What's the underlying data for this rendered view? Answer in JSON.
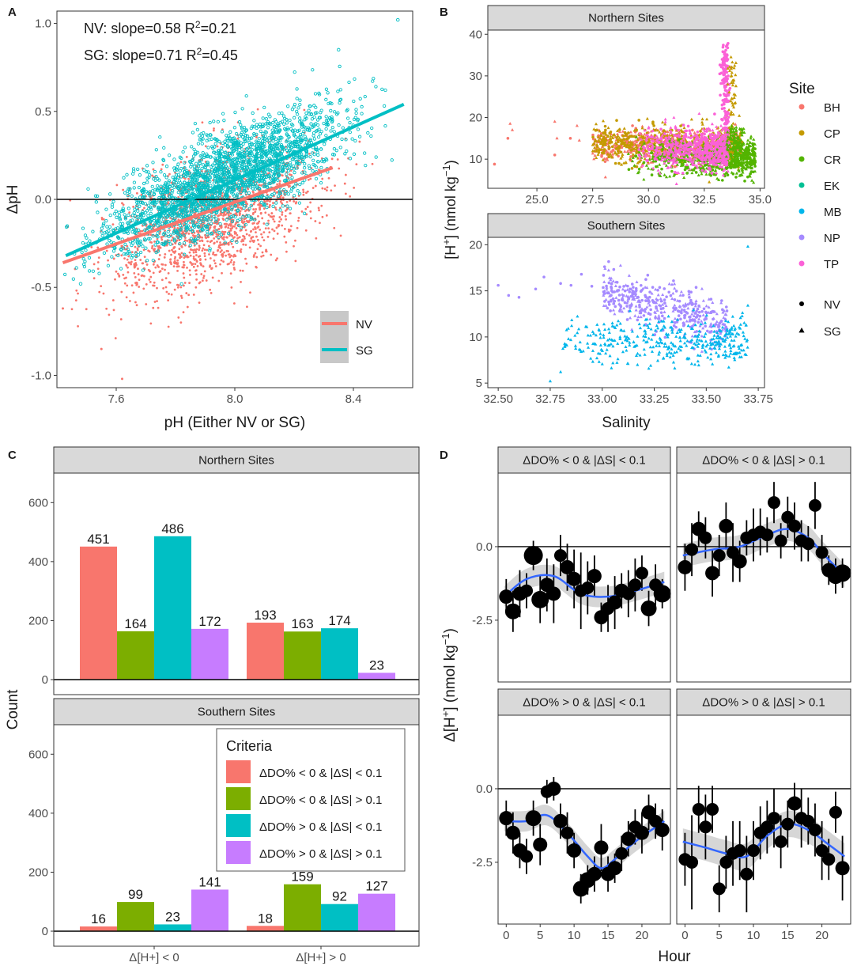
{
  "colors": {
    "nv": "#F8766D",
    "sg": "#00BFC4",
    "site": {
      "BH": "#F8766D",
      "CP": "#C49A00",
      "CR": "#53B400",
      "EK": "#00C094",
      "MB": "#00B6EB",
      "NP": "#A58AFF",
      "TP": "#FB61D7"
    },
    "criteria": [
      "#F8766D",
      "#7CAE00",
      "#00BFC4",
      "#C77CFF"
    ],
    "smooth": "#3366FF",
    "strip": "#d9d9d9"
  },
  "chart_data": [
    {
      "panel": "A",
      "type": "scatter",
      "xlabel": "pH (Either NV or SG)",
      "ylabel": "ΔpH",
      "xlim": [
        7.4,
        8.6
      ],
      "ylim": [
        -1.07,
        1.07
      ],
      "xticks": [
        "7.6",
        "8.0",
        "8.4"
      ],
      "xtick_values": [
        7.6,
        8.0,
        8.4
      ],
      "yticks": [
        "1.0",
        "0.5",
        "0.0",
        "-0.5",
        "-1.0"
      ],
      "ytick_values": [
        1.0,
        0.5,
        0.0,
        -0.5,
        -1.0
      ],
      "annotations": [
        {
          "pre": "NV: slope=0.58 R",
          "sup": "2",
          "post": "=0.21"
        },
        {
          "pre": "SG: slope=0.71 R",
          "sup": "2",
          "post": "=0.45"
        }
      ],
      "series": [
        {
          "name": "NV",
          "slope": 0.58,
          "r2": 0.21,
          "fit_x": [
            7.42,
            8.33
          ],
          "fit_y": [
            -0.36,
            0.18
          ],
          "x_center": 7.92,
          "x_sd": 0.17,
          "noise": 0.17,
          "n": 1700
        },
        {
          "name": "SG",
          "slope": 0.71,
          "r2": 0.45,
          "fit_x": [
            7.43,
            8.57
          ],
          "fit_y": [
            -0.32,
            0.54
          ],
          "x_center": 7.96,
          "x_sd": 0.19,
          "noise": 0.13,
          "n": 2400
        }
      ],
      "outliers": {
        "NV": [
          [
            7.62,
            -1.02
          ],
          [
            7.55,
            -0.85
          ],
          [
            7.42,
            -0.62
          ]
        ],
        "SG": [
          [
            8.55,
            1.02
          ],
          [
            8.35,
            0.85
          ],
          [
            7.48,
            -0.48
          ]
        ]
      },
      "legend": [
        "NV",
        "SG"
      ]
    },
    {
      "panel": "B",
      "type": "scatter",
      "xlabel": "Salinity",
      "ylabel": {
        "pre": "[H",
        "sup": "+",
        "post": "] (nmol kg",
        "sup2": "−1",
        "end": ")"
      },
      "facets": [
        {
          "title": "Northern Sites",
          "xlim": [
            22.8,
            35.2
          ],
          "ylim": [
            3,
            41
          ],
          "xticks": [
            "25.0",
            "27.5",
            "30.0",
            "32.5",
            "35.0"
          ],
          "xtick_values": [
            25.0,
            27.5,
            30.0,
            32.5,
            35.0
          ],
          "yticks": [
            "10",
            "20",
            "30",
            "40"
          ],
          "ytick_values": [
            10,
            20,
            30,
            40
          ],
          "sites": [
            "BH",
            "CP",
            "CR",
            "TP"
          ]
        },
        {
          "title": "Southern Sites",
          "xlim": [
            32.45,
            33.78
          ],
          "ylim": [
            4.5,
            20.8
          ],
          "xticks": [
            "32.50",
            "32.75",
            "33.00",
            "33.25",
            "33.50",
            "33.75"
          ],
          "xtick_values": [
            32.5,
            32.75,
            33.0,
            33.25,
            33.5,
            33.75
          ],
          "yticks": [
            "5",
            "10",
            "15",
            "20"
          ],
          "ytick_values": [
            5,
            10,
            15,
            20
          ],
          "sites": [
            "NP",
            "MB"
          ]
        }
      ],
      "legend": {
        "title": "Site",
        "sites": [
          "BH",
          "CP",
          "CR",
          "EK",
          "MB",
          "NP",
          "TP"
        ],
        "shapes": [
          "NV",
          "SG"
        ]
      }
    },
    {
      "panel": "C",
      "type": "bar",
      "ylabel": "Count",
      "ylim": [
        0,
        700
      ],
      "yticks": [
        "0",
        "200",
        "400",
        "600"
      ],
      "ytick_values": [
        0,
        200,
        400,
        600
      ],
      "categories": [
        "Δ[H+] < 0",
        "Δ[H+] > 0"
      ],
      "criteria": [
        "ΔDO% < 0 & |ΔS| < 0.1",
        "ΔDO% < 0 & |ΔS| > 0.1",
        "ΔDO% > 0 & |ΔS| < 0.1",
        "ΔDO% > 0 & |ΔS| > 0.1"
      ],
      "legend_title": "Criteria",
      "facets": [
        {
          "title": "Northern Sites",
          "values": [
            [
              451,
              164,
              486,
              172
            ],
            [
              193,
              163,
              174,
              23
            ]
          ]
        },
        {
          "title": "Southern Sites",
          "values": [
            [
              16,
              99,
              23,
              141
            ],
            [
              18,
              159,
              92,
              127
            ]
          ]
        }
      ],
      "value_labels": {
        "northern": [
          "451",
          "164",
          "486",
          "172",
          "193",
          "163",
          "174",
          "23"
        ],
        "southern": [
          "16",
          "99",
          "23",
          "141",
          "18",
          "159",
          "92",
          "127"
        ]
      }
    },
    {
      "panel": "D",
      "type": "scatter",
      "xlabel": "Hour",
      "ylabel": {
        "pre": "Δ[H",
        "sup": "+",
        "post": "] (nmol kg",
        "sup2": "−1",
        "end": ")"
      },
      "xlim": [
        -1.2,
        24.2
      ],
      "ylim": [
        -4.6,
        2.5
      ],
      "xticks": [
        "0",
        "5",
        "10",
        "15",
        "20"
      ],
      "xtick_values": [
        0,
        5,
        10,
        15,
        20
      ],
      "yticks": [
        "0.0",
        "-2.5"
      ],
      "ytick_values": [
        0,
        -2.5
      ],
      "facets": [
        {
          "title": "ΔDO% < 0 & |ΔS| < 0.1",
          "points": [
            [
              0,
              -1.7
            ],
            [
              1,
              -2.2
            ],
            [
              2,
              -1.6
            ],
            [
              3,
              -1.5
            ],
            [
              4,
              -0.3
            ],
            [
              5,
              -1.8
            ],
            [
              6,
              -1.3
            ],
            [
              7,
              -1.6
            ],
            [
              8,
              -0.3
            ],
            [
              9,
              -0.7
            ],
            [
              10,
              -1.1
            ],
            [
              11,
              -1.5
            ],
            [
              12,
              -1.4
            ],
            [
              13,
              -1.0
            ],
            [
              14,
              -2.4
            ],
            [
              15,
              -2.1
            ],
            [
              16,
              -1.9
            ],
            [
              17,
              -1.5
            ],
            [
              18,
              -1.6
            ],
            [
              19,
              -1.3
            ],
            [
              20,
              -0.9
            ],
            [
              21,
              -2.1
            ],
            [
              22,
              -1.3
            ],
            [
              23,
              -1.6
            ]
          ],
          "err": [
            0.6,
            0.7,
            0.8,
            0.6,
            0.5,
            0.8,
            0.9,
            1.0,
            0.7,
            0.8,
            1.0,
            1.3,
            0.9,
            0.7,
            0.5,
            0.8,
            0.9,
            0.6,
            0.8,
            0.9,
            0.6,
            0.6,
            0.7,
            0.5
          ],
          "size": [
            9,
            10,
            9,
            8,
            12,
            11,
            9,
            9,
            8,
            9,
            9,
            8,
            8,
            9,
            9,
            8,
            9,
            9,
            8,
            8,
            8,
            10,
            8,
            11
          ],
          "smooth": [
            [
              -0.3,
              -1.7
            ],
            [
              3,
              -1.1
            ],
            [
              7,
              -1.0
            ],
            [
              11,
              -1.6
            ],
            [
              15,
              -1.7
            ],
            [
              19,
              -1.5
            ],
            [
              23.3,
              -1.2
            ]
          ],
          "band": 0.35
        },
        {
          "title": "ΔDO% < 0 & |ΔS| > 0.1",
          "points": [
            [
              0,
              -0.7
            ],
            [
              1,
              -0.1
            ],
            [
              2,
              0.6
            ],
            [
              3,
              0.3
            ],
            [
              4,
              -0.9
            ],
            [
              5,
              -0.3
            ],
            [
              6,
              0.7
            ],
            [
              7,
              -0.2
            ],
            [
              8,
              -0.5
            ],
            [
              9,
              0.3
            ],
            [
              10,
              0.4
            ],
            [
              11,
              0.5
            ],
            [
              12,
              0.4
            ],
            [
              13,
              1.5
            ],
            [
              14,
              0.2
            ],
            [
              15,
              1.0
            ],
            [
              16,
              0.7
            ],
            [
              17,
              0.2
            ],
            [
              18,
              0.1
            ],
            [
              19,
              1.4
            ],
            [
              20,
              -0.2
            ],
            [
              21,
              -0.8
            ],
            [
              22,
              -1.0
            ],
            [
              23,
              -0.9
            ]
          ],
          "err": [
            0.8,
            0.9,
            0.6,
            0.7,
            0.8,
            0.7,
            0.8,
            1.0,
            0.7,
            0.6,
            0.9,
            0.8,
            0.6,
            0.7,
            0.6,
            0.7,
            0.8,
            0.7,
            0.6,
            0.8,
            0.6,
            0.5,
            0.6,
            0.5
          ],
          "size": [
            9,
            8,
            9,
            8,
            9,
            8,
            9,
            8,
            9,
            8,
            8,
            8,
            8,
            8,
            8,
            8,
            8,
            8,
            8,
            8,
            8,
            9,
            10,
            11
          ],
          "smooth": [
            [
              -0.3,
              -0.3
            ],
            [
              4,
              -0.1
            ],
            [
              8,
              0.0
            ],
            [
              12,
              0.4
            ],
            [
              15,
              0.6
            ],
            [
              18,
              0.3
            ],
            [
              20,
              -0.2
            ],
            [
              23.3,
              -1.0
            ]
          ],
          "band": 0.4
        },
        {
          "title": "ΔDO% > 0 & |ΔS| < 0.1",
          "points": [
            [
              0,
              -1.0
            ],
            [
              1,
              -1.5
            ],
            [
              2,
              -2.1
            ],
            [
              3,
              -2.3
            ],
            [
              4,
              -1.0
            ],
            [
              5,
              -1.9
            ],
            [
              6,
              -0.1
            ],
            [
              7,
              0.0
            ],
            [
              8,
              -1.1
            ],
            [
              9,
              -1.5
            ],
            [
              10,
              -2.1
            ],
            [
              11,
              -3.4
            ],
            [
              12,
              -3.1
            ],
            [
              13,
              -2.9
            ],
            [
              14,
              -2.0
            ],
            [
              15,
              -2.9
            ],
            [
              16,
              -2.7
            ],
            [
              17,
              -2.2
            ],
            [
              18,
              -1.7
            ],
            [
              19,
              -1.3
            ],
            [
              20,
              -1.5
            ],
            [
              21,
              -0.8
            ],
            [
              22,
              -1.1
            ],
            [
              23,
              -1.4
            ]
          ],
          "err": [
            0.6,
            0.7,
            0.6,
            0.6,
            0.6,
            0.7,
            0.4,
            0.4,
            0.6,
            0.7,
            0.6,
            0.5,
            0.5,
            0.6,
            0.8,
            0.6,
            0.5,
            0.6,
            0.6,
            0.6,
            0.7,
            0.6,
            0.6,
            0.7
          ],
          "size": [
            9,
            9,
            9,
            8,
            10,
            9,
            8,
            9,
            9,
            8,
            9,
            10,
            10,
            9,
            9,
            9,
            9,
            8,
            9,
            8,
            9,
            9,
            8,
            9
          ],
          "smooth": [
            [
              -0.3,
              -1.1
            ],
            [
              3,
              -1.1
            ],
            [
              6,
              -0.9
            ],
            [
              9,
              -1.5
            ],
            [
              12,
              -2.3
            ],
            [
              14,
              -2.7
            ],
            [
              16,
              -2.4
            ],
            [
              19,
              -1.8
            ],
            [
              23.3,
              -1.1
            ]
          ],
          "band": 0.35
        },
        {
          "title": "ΔDO% > 0 & |ΔS| > 0.1",
          "points": [
            [
              0,
              -2.4
            ],
            [
              1,
              -2.5
            ],
            [
              2,
              -0.7
            ],
            [
              3,
              -1.3
            ],
            [
              4,
              -0.7
            ],
            [
              5,
              -3.4
            ],
            [
              6,
              -2.5
            ],
            [
              7,
              -2.2
            ],
            [
              8,
              -2.1
            ],
            [
              9,
              -2.9
            ],
            [
              10,
              -2.1
            ],
            [
              11,
              -1.5
            ],
            [
              12,
              -1.3
            ],
            [
              13,
              -1.0
            ],
            [
              14,
              -1.8
            ],
            [
              15,
              -1.2
            ],
            [
              16,
              -0.5
            ],
            [
              17,
              -1.0
            ],
            [
              18,
              -1.1
            ],
            [
              19,
              -1.4
            ],
            [
              20,
              -2.1
            ],
            [
              21,
              -2.4
            ],
            [
              22,
              -0.8
            ],
            [
              23,
              -2.7
            ]
          ],
          "err": [
            0.9,
            1.6,
            0.8,
            1.1,
            0.8,
            0.8,
            0.9,
            1.1,
            1.0,
            1.3,
            1.0,
            0.9,
            0.9,
            1.0,
            0.9,
            0.8,
            0.7,
            1.0,
            0.8,
            0.9,
            1.0,
            0.7,
            0.7,
            1.1
          ],
          "size": [
            8,
            8,
            8,
            8,
            8,
            8,
            8,
            8,
            8,
            8,
            8,
            8,
            8,
            8,
            8,
            8,
            9,
            8,
            8,
            8,
            8,
            8,
            8,
            9
          ],
          "smooth": [
            [
              -0.3,
              -1.8
            ],
            [
              3,
              -2.0
            ],
            [
              6,
              -2.2
            ],
            [
              9,
              -2.3
            ],
            [
              12,
              -1.6
            ],
            [
              15,
              -1.2
            ],
            [
              18,
              -1.4
            ],
            [
              21,
              -1.9
            ],
            [
              23.3,
              -2.3
            ]
          ],
          "band": 0.45
        }
      ]
    }
  ]
}
